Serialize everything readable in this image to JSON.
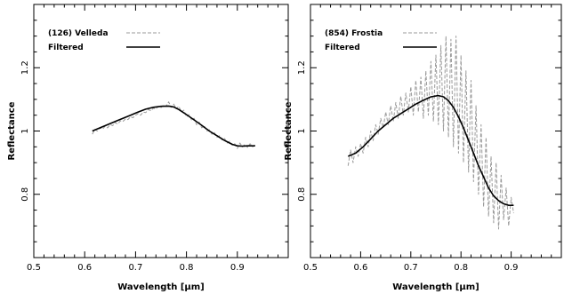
{
  "chart_data": [
    {
      "type": "line",
      "xlabel": "Wavelength [μm]",
      "ylabel": "Reflectance",
      "xlim": [
        0.5,
        1.0
      ],
      "ylim": [
        0.6,
        1.4
      ],
      "xticks": [
        0.5,
        0.6,
        0.7,
        0.8,
        0.9
      ],
      "xtick_labels": [
        "0.5",
        "0.6",
        "0.7",
        "0.8",
        "0.9"
      ],
      "yticks": [
        0.8,
        1.0,
        1.2
      ],
      "ytick_labels": [
        "0.8",
        "1",
        "1.2"
      ],
      "legend_position": "top-left",
      "series": [
        {
          "name": "(126) Velleda",
          "style": "dashed",
          "color": "#9a9a9a",
          "x": [
            0.615,
            0.62,
            0.625,
            0.63,
            0.635,
            0.64,
            0.645,
            0.65,
            0.655,
            0.66,
            0.665,
            0.67,
            0.675,
            0.68,
            0.685,
            0.69,
            0.695,
            0.7,
            0.705,
            0.71,
            0.715,
            0.72,
            0.725,
            0.73,
            0.735,
            0.74,
            0.745,
            0.75,
            0.755,
            0.76,
            0.765,
            0.77,
            0.775,
            0.78,
            0.785,
            0.79,
            0.795,
            0.8,
            0.805,
            0.81,
            0.815,
            0.82,
            0.825,
            0.83,
            0.835,
            0.84,
            0.845,
            0.85,
            0.855,
            0.86,
            0.865,
            0.87,
            0.875,
            0.88,
            0.885,
            0.89,
            0.895,
            0.9,
            0.905,
            0.91,
            0.915,
            0.92,
            0.925,
            0.93,
            0.935
          ],
          "y": [
            0.99,
            1.005,
            1.0,
            1.01,
            1.006,
            1.015,
            1.01,
            1.02,
            1.017,
            1.027,
            1.022,
            1.032,
            1.03,
            1.038,
            1.036,
            1.045,
            1.042,
            1.05,
            1.055,
            1.05,
            1.06,
            1.058,
            1.068,
            1.064,
            1.072,
            1.07,
            1.078,
            1.074,
            1.082,
            1.078,
            1.092,
            1.075,
            1.085,
            1.07,
            1.078,
            1.06,
            1.066,
            1.045,
            1.052,
            1.035,
            1.04,
            1.02,
            1.028,
            1.01,
            1.016,
            1.0,
            1.004,
            0.99,
            0.995,
            0.98,
            0.985,
            0.972,
            0.976,
            0.962,
            0.968,
            0.955,
            0.96,
            0.945,
            0.962,
            0.95,
            0.958,
            0.948,
            0.96,
            0.95,
            0.956
          ]
        },
        {
          "name": "Filtered",
          "style": "solid",
          "color": "#000000",
          "x": [
            0.615,
            0.63,
            0.645,
            0.66,
            0.675,
            0.69,
            0.705,
            0.72,
            0.735,
            0.75,
            0.765,
            0.775,
            0.785,
            0.8,
            0.815,
            0.83,
            0.845,
            0.86,
            0.875,
            0.89,
            0.9,
            0.91,
            0.92,
            0.935
          ],
          "y": [
            1.0,
            1.01,
            1.02,
            1.03,
            1.04,
            1.05,
            1.06,
            1.069,
            1.075,
            1.078,
            1.079,
            1.076,
            1.068,
            1.052,
            1.035,
            1.018,
            1.0,
            0.985,
            0.97,
            0.958,
            0.953,
            0.952,
            0.953,
            0.953
          ]
        }
      ]
    },
    {
      "type": "line",
      "xlabel": "Wavelength [μm]",
      "ylabel": "Reflectance",
      "xlim": [
        0.5,
        1.0
      ],
      "ylim": [
        0.6,
        1.4
      ],
      "xticks": [
        0.5,
        0.6,
        0.7,
        0.8,
        0.9
      ],
      "xtick_labels": [
        "0.5",
        "0.6",
        "0.7",
        "0.8",
        "0.9"
      ],
      "yticks": [
        0.8,
        1.0,
        1.2
      ],
      "ytick_labels": [
        "0.8",
        "1",
        "1.2"
      ],
      "legend_position": "top-left",
      "series": [
        {
          "name": "(854) Frostia",
          "style": "dashed",
          "color": "#9a9a9a",
          "x": [
            0.575,
            0.58,
            0.585,
            0.59,
            0.595,
            0.6,
            0.605,
            0.61,
            0.615,
            0.62,
            0.625,
            0.63,
            0.635,
            0.64,
            0.645,
            0.65,
            0.655,
            0.66,
            0.665,
            0.67,
            0.675,
            0.68,
            0.685,
            0.69,
            0.695,
            0.7,
            0.705,
            0.71,
            0.715,
            0.72,
            0.725,
            0.73,
            0.735,
            0.74,
            0.745,
            0.75,
            0.755,
            0.76,
            0.765,
            0.77,
            0.775,
            0.78,
            0.785,
            0.79,
            0.795,
            0.8,
            0.805,
            0.81,
            0.815,
            0.82,
            0.825,
            0.83,
            0.835,
            0.84,
            0.845,
            0.85,
            0.855,
            0.86,
            0.865,
            0.87,
            0.875,
            0.88,
            0.885,
            0.89,
            0.895,
            0.9,
            0.905
          ],
          "y": [
            0.89,
            0.94,
            0.9,
            0.95,
            0.92,
            0.96,
            0.93,
            0.98,
            0.95,
            1.0,
            0.97,
            1.02,
            0.99,
            1.04,
            1.01,
            1.06,
            1.02,
            1.08,
            1.03,
            1.09,
            1.04,
            1.11,
            1.05,
            1.12,
            1.06,
            1.14,
            1.05,
            1.16,
            1.06,
            1.17,
            1.04,
            1.19,
            1.05,
            1.22,
            1.03,
            1.24,
            1.02,
            1.27,
            1.0,
            1.3,
            0.98,
            1.29,
            0.95,
            1.3,
            0.93,
            1.24,
            0.9,
            1.19,
            0.87,
            1.16,
            0.84,
            1.08,
            0.8,
            1.02,
            0.76,
            0.98,
            0.73,
            0.92,
            0.71,
            0.9,
            0.69,
            0.86,
            0.72,
            0.82,
            0.7,
            0.79,
            0.74
          ]
        },
        {
          "name": "Filtered",
          "style": "solid",
          "color": "#000000",
          "x": [
            0.575,
            0.59,
            0.605,
            0.62,
            0.635,
            0.65,
            0.665,
            0.68,
            0.695,
            0.71,
            0.725,
            0.74,
            0.755,
            0.765,
            0.775,
            0.785,
            0.795,
            0.805,
            0.815,
            0.825,
            0.835,
            0.845,
            0.855,
            0.865,
            0.875,
            0.885,
            0.895,
            0.905
          ],
          "y": [
            0.92,
            0.93,
            0.95,
            0.975,
            1.0,
            1.02,
            1.04,
            1.055,
            1.07,
            1.085,
            1.097,
            1.108,
            1.112,
            1.108,
            1.096,
            1.075,
            1.045,
            1.01,
            0.97,
            0.93,
            0.89,
            0.855,
            0.82,
            0.795,
            0.78,
            0.77,
            0.765,
            0.765
          ]
        }
      ]
    }
  ]
}
